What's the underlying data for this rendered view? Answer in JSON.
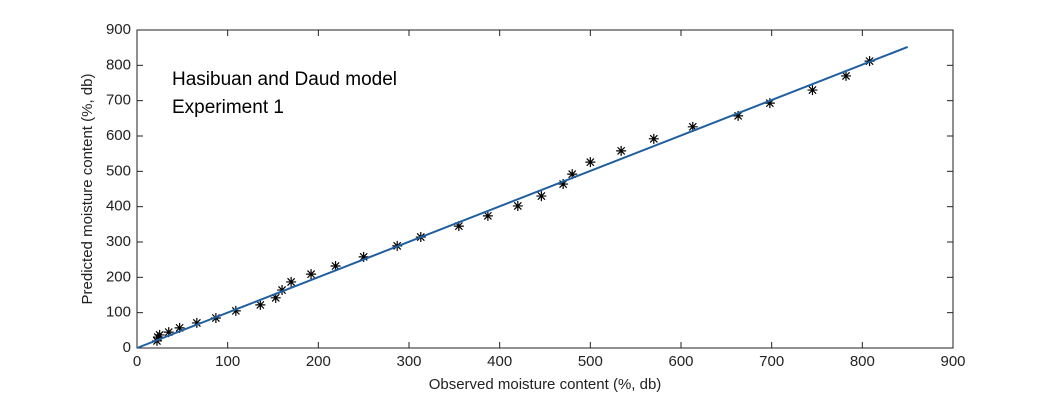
{
  "chart_data": {
    "type": "scatter",
    "xlabel": "Observed moisture content (%, db)",
    "ylabel": "Predicted moisture content (%, db)",
    "annotations": [
      "Hasibuan and Daud model",
      "Experiment 1"
    ],
    "xlim": [
      0,
      900
    ],
    "ylim": [
      0,
      900
    ],
    "xticks": [
      0,
      100,
      200,
      300,
      400,
      500,
      600,
      700,
      800,
      900
    ],
    "yticks": [
      0,
      100,
      200,
      300,
      400,
      500,
      600,
      700,
      800,
      900
    ],
    "series": [
      {
        "type": "scatter",
        "color": "#000000",
        "x": [
          22,
          23,
          25,
          35,
          47,
          66,
          87,
          109,
          136,
          153,
          160,
          170,
          192,
          219,
          250,
          287,
          313,
          355,
          387,
          420,
          446,
          470,
          480,
          500,
          534,
          570,
          613,
          663,
          698,
          745,
          782,
          808
        ],
        "values": [
          20,
          31,
          37,
          45,
          57,
          71,
          85,
          105,
          122,
          142,
          164,
          187,
          209,
          232,
          258,
          289,
          314,
          345,
          374,
          402,
          430,
          464,
          492,
          526,
          558,
          592,
          626,
          657,
          693,
          730,
          770,
          812
        ]
      },
      {
        "type": "line",
        "color": "#1f5f9f",
        "x": [
          0,
          850
        ],
        "values": [
          0,
          852
        ]
      }
    ]
  }
}
